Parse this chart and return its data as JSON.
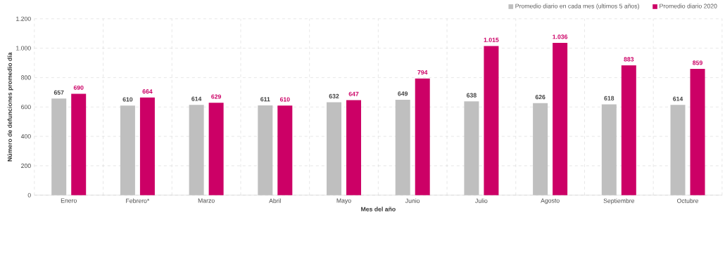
{
  "chart_data": {
    "type": "bar",
    "categories": [
      "Enero",
      "Febrero*",
      "Marzo",
      "Abril",
      "Mayo",
      "Junio",
      "Julio",
      "Agosto",
      "Septiembre",
      "Octubre"
    ],
    "series": [
      {
        "name": "Promedio diario en cada mes (ultimos 5 años)",
        "color": "#bfbfbf",
        "values": [
          657,
          610,
          614,
          611,
          632,
          649,
          638,
          626,
          618,
          614
        ],
        "value_labels": [
          "657",
          "610",
          "614",
          "611",
          "632",
          "649",
          "638",
          "626",
          "618",
          "614"
        ]
      },
      {
        "name": "Promedio diario 2020",
        "color": "#cc0066",
        "values": [
          690,
          664,
          629,
          610,
          647,
          794,
          1015,
          1036,
          883,
          859
        ],
        "value_labels": [
          "690",
          "664",
          "629",
          "610",
          "647",
          "794",
          "1.015",
          "1.036",
          "883",
          "859"
        ]
      }
    ],
    "xlabel": "Mes del año",
    "ylabel": "Número de defunciones promedio día",
    "ylim": [
      0,
      1200
    ],
    "yticks": [
      0,
      200,
      400,
      600,
      800,
      {
        "value": 1000,
        "label": "1.000"
      },
      {
        "value": 1200,
        "label": "1.200"
      }
    ],
    "grid": true,
    "legend": "top right"
  }
}
